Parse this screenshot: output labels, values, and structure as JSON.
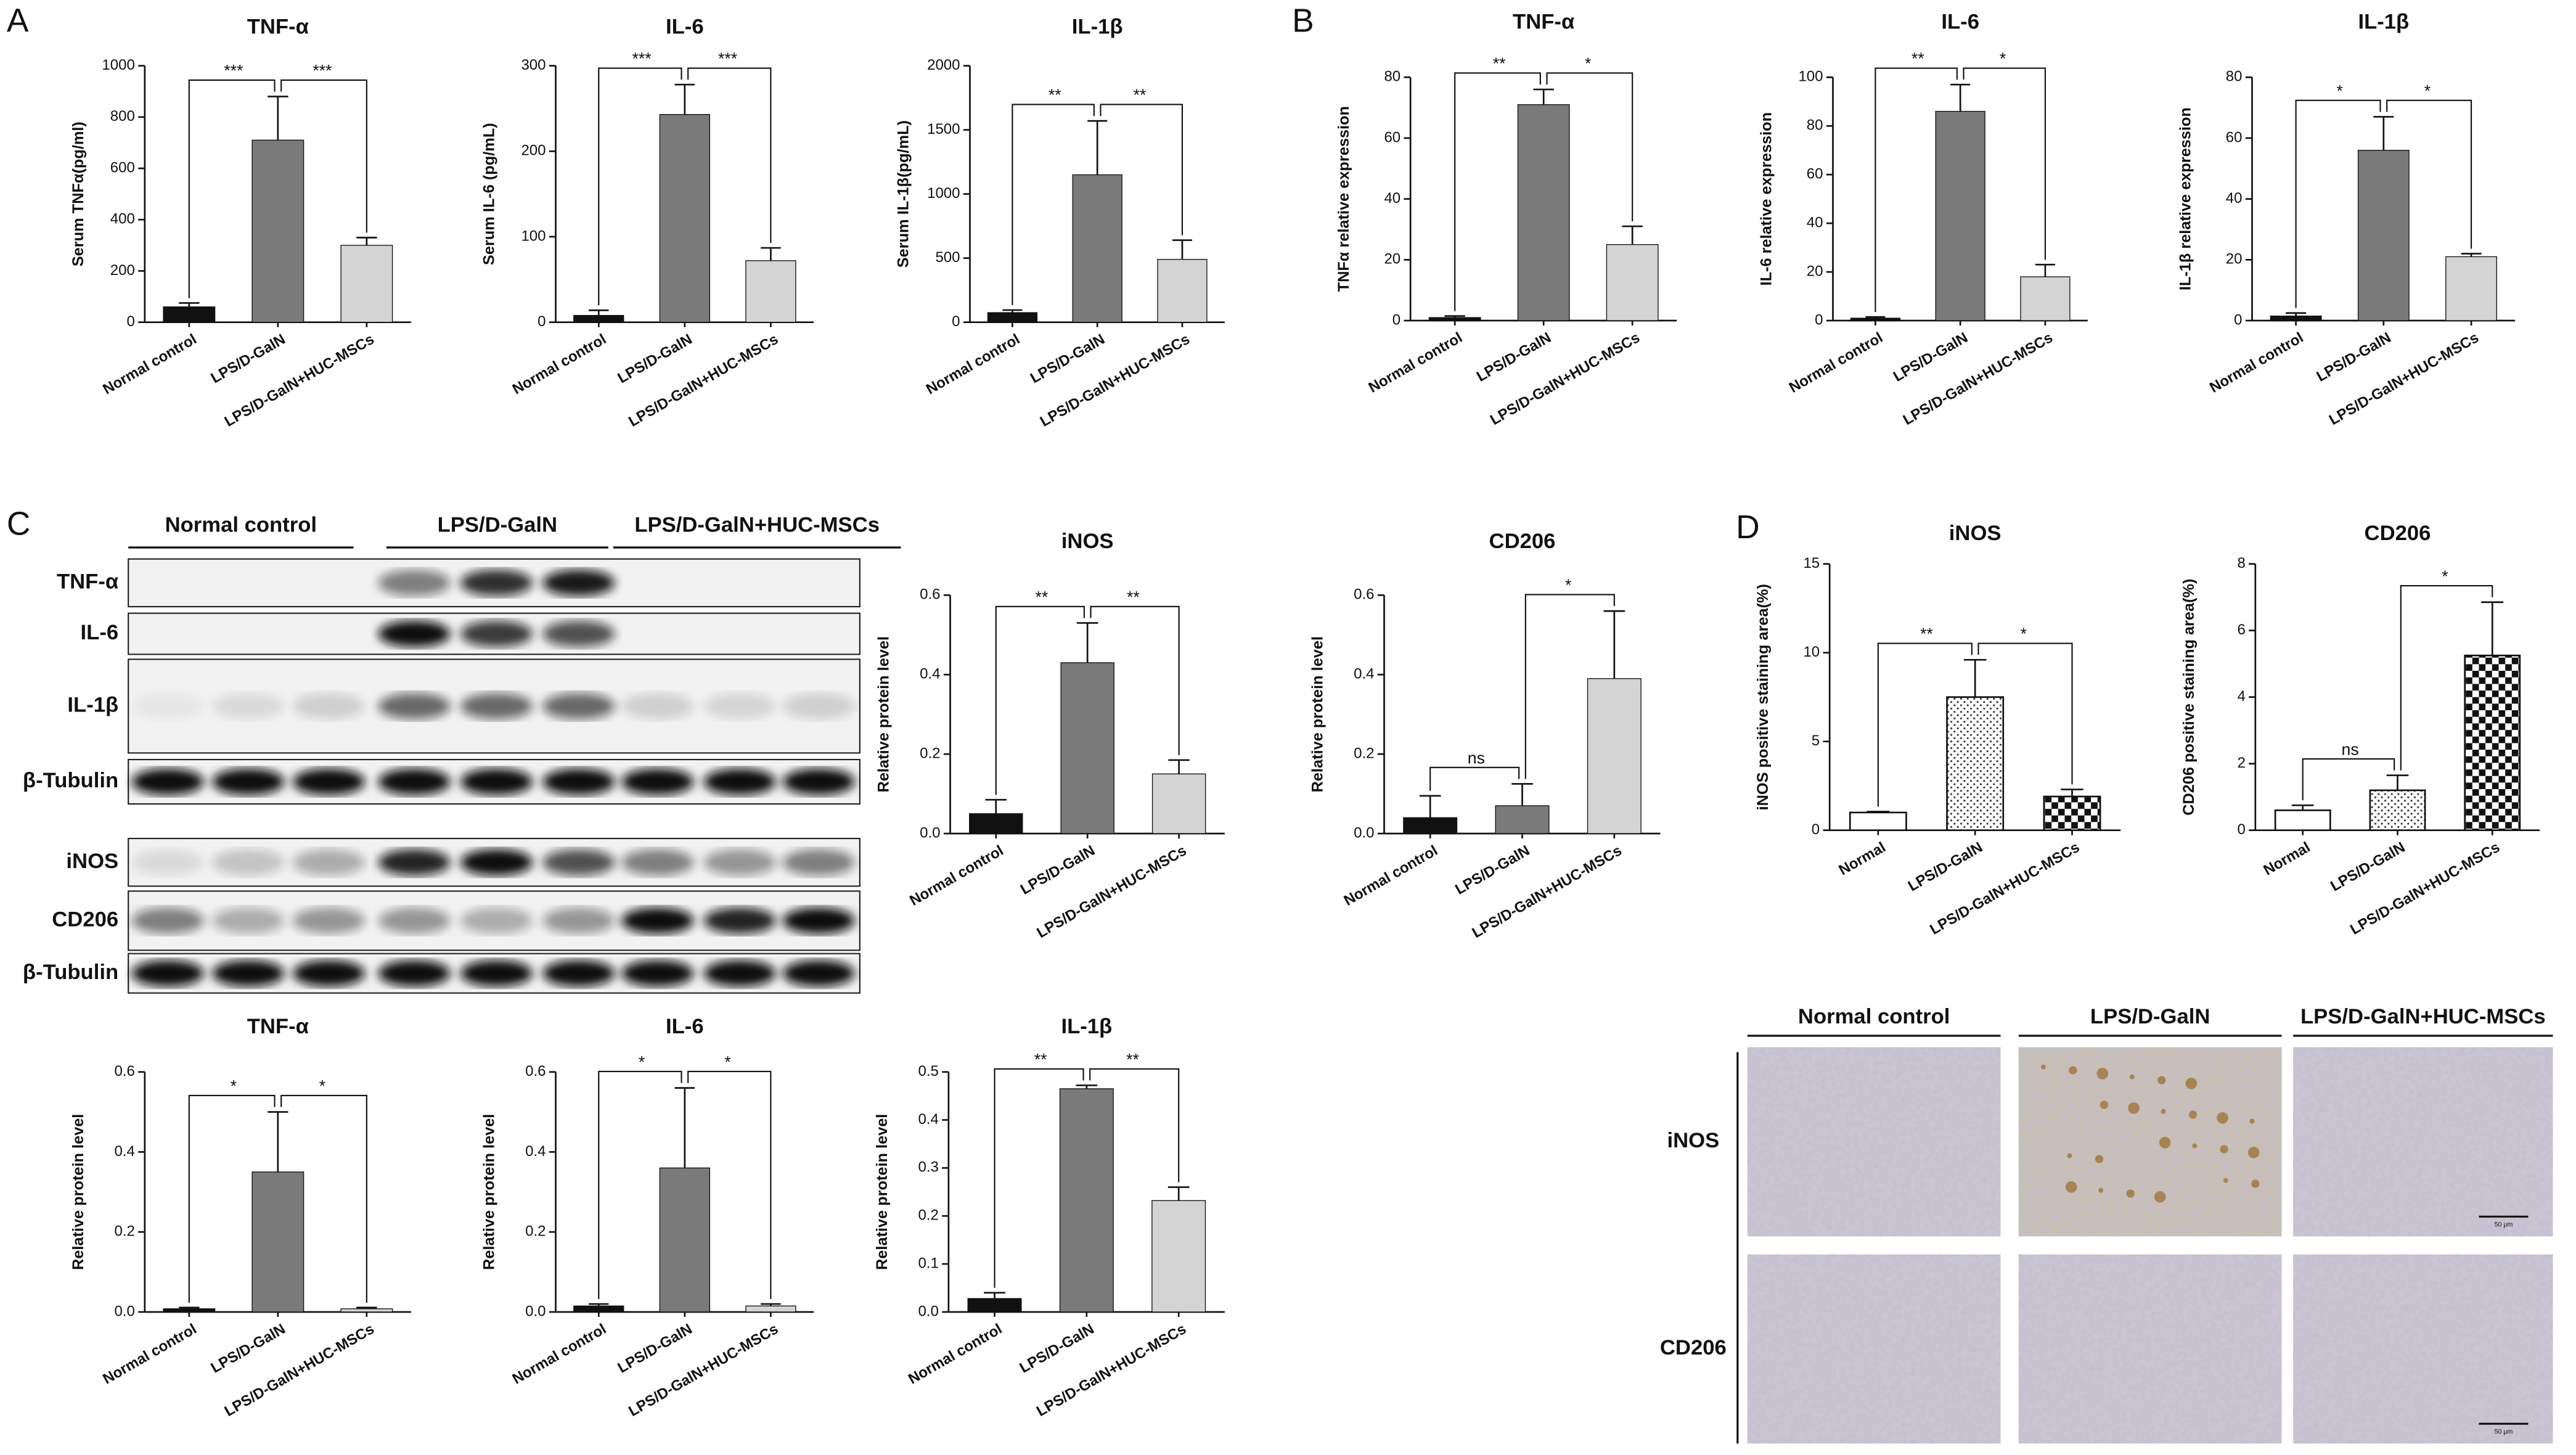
{
  "panel_labels": [
    "A",
    "B",
    "C",
    "D"
  ],
  "western_blot": {
    "groups": [
      "Normal control",
      "LPS/D-GalN",
      "LPS/D-GalN+HUC-MSCs"
    ],
    "rows": [
      "TNF-α",
      "IL-6",
      "IL-1β",
      "β-Tubulin",
      "iNOS",
      "CD206",
      "β-Tubulin"
    ]
  },
  "ihc": {
    "groups": [
      "Normal control",
      "LPS/D-GalN",
      "LPS/D-GalN+HUC-MSCs"
    ],
    "rows": [
      "iNOS",
      "CD206"
    ],
    "scale_bar": "50 μm"
  },
  "chart_data": [
    {
      "type": "bar",
      "title": "TNF-α",
      "y_label": "Serum TNFα(pg/ml)",
      "categories": [
        "Normal control",
        "LPS/D-GalN",
        "LPS/D-GalN+HUC-MSCs"
      ],
      "values": [
        60,
        710,
        300
      ],
      "errors": [
        15,
        170,
        30
      ],
      "colors": [
        "#111111",
        "#7a7a7a",
        "#d4d4d4"
      ],
      "ylim": [
        0,
        1000
      ],
      "yticks": [
        0,
        200,
        400,
        600,
        800,
        1000
      ],
      "annotations": [
        "***",
        "***"
      ]
    },
    {
      "type": "bar",
      "title": "IL-6",
      "y_label": "Serum IL-6 (pg/mL)",
      "categories": [
        "Normal control",
        "LPS/D-GalN",
        "LPS/D-GalN+HUC-MSCs"
      ],
      "values": [
        8,
        243,
        72
      ],
      "errors": [
        6,
        35,
        15
      ],
      "colors": [
        "#111111",
        "#7a7a7a",
        "#d4d4d4"
      ],
      "ylim": [
        0,
        300
      ],
      "yticks": [
        0,
        100,
        200,
        300
      ],
      "annotations": [
        "***",
        "***"
      ]
    },
    {
      "type": "bar",
      "title": "IL-1β",
      "y_label": "Serum IL-1β(pg/mL)",
      "categories": [
        "Normal control",
        "LPS/D-GalN",
        "LPS/D-GalN+HUC-MSCs"
      ],
      "values": [
        75,
        1150,
        490
      ],
      "errors": [
        20,
        420,
        150
      ],
      "colors": [
        "#111111",
        "#7a7a7a",
        "#d4d4d4"
      ],
      "ylim": [
        0,
        2000
      ],
      "yticks": [
        0,
        500,
        1000,
        1500,
        2000
      ],
      "annotations": [
        "**",
        "**"
      ]
    },
    {
      "type": "bar",
      "title": "TNF-α",
      "y_label": "TNFα relative expression",
      "categories": [
        "Normal control",
        "LPS/D-GalN",
        "LPS/D-GalN+HUC-MSCs"
      ],
      "values": [
        1,
        71,
        25
      ],
      "errors": [
        0.5,
        5,
        6
      ],
      "colors": [
        "#111111",
        "#7a7a7a",
        "#d4d4d4"
      ],
      "ylim": [
        0,
        80
      ],
      "yticks": [
        0,
        20,
        40,
        60,
        80
      ],
      "annotations": [
        "**",
        "*"
      ]
    },
    {
      "type": "bar",
      "title": "IL-6",
      "y_label": "IL-6 relative expression",
      "categories": [
        "Normal control",
        "LPS/D-GalN",
        "LPS/D-GalN+HUC-MSCs"
      ],
      "values": [
        1,
        86,
        18
      ],
      "errors": [
        0.5,
        11,
        5
      ],
      "colors": [
        "#111111",
        "#7a7a7a",
        "#d4d4d4"
      ],
      "ylim": [
        0,
        100
      ],
      "yticks": [
        0,
        20,
        40,
        60,
        80,
        100
      ],
      "annotations": [
        "**",
        "*"
      ]
    },
    {
      "type": "bar",
      "title": "IL-1β",
      "y_label": "IL-1β relative expression",
      "categories": [
        "Normal control",
        "LPS/D-GalN",
        "LPS/D-GalN+HUC-MSCs"
      ],
      "values": [
        1.5,
        56,
        21
      ],
      "errors": [
        1,
        11,
        1
      ],
      "colors": [
        "#111111",
        "#7a7a7a",
        "#d4d4d4"
      ],
      "ylim": [
        0,
        80
      ],
      "yticks": [
        0,
        20,
        40,
        60,
        80
      ],
      "annotations": [
        "*",
        "*"
      ]
    },
    {
      "type": "bar",
      "title": "iNOS",
      "y_label": "Relative protein level",
      "categories": [
        "Normal control",
        "LPS/D-GalN",
        "LPS/D-GalN+HUC-MSCs"
      ],
      "values": [
        0.05,
        0.43,
        0.15
      ],
      "errors": [
        0.035,
        0.1,
        0.035
      ],
      "colors": [
        "#111111",
        "#7a7a7a",
        "#d4d4d4"
      ],
      "ylim": [
        0,
        0.6
      ],
      "yticks": [
        {
          "value": 0,
          "label": "0.0"
        },
        0.2,
        0.4,
        0.6
      ],
      "annotations": [
        "**",
        "**"
      ]
    },
    {
      "type": "bar",
      "title": "CD206",
      "y_label": "Relative protein level",
      "categories": [
        "Normal control",
        "LPS/D-GalN",
        "LPS/D-GalN+HUC-MSCs"
      ],
      "values": [
        0.04,
        0.07,
        0.39
      ],
      "errors": [
        0.055,
        0.055,
        0.17
      ],
      "colors": [
        "#111111",
        "#7a7a7a",
        "#d4d4d4"
      ],
      "ylim": [
        0,
        0.6
      ],
      "yticks": [
        {
          "value": 0,
          "label": "0.0"
        },
        0.2,
        0.4,
        0.6
      ],
      "annotations": [
        "ns",
        "*"
      ]
    },
    {
      "type": "bar",
      "title": "TNF-α",
      "y_label": "Relative protein level",
      "categories": [
        "Normal control",
        "LPS/D-GalN",
        "LPS/D-GalN+HUC-MSCs"
      ],
      "values": [
        0.008,
        0.35,
        0.008
      ],
      "errors": [
        0.003,
        0.15,
        0.003
      ],
      "colors": [
        "#111111",
        "#7a7a7a",
        "#d4d4d4"
      ],
      "ylim": [
        0,
        0.6
      ],
      "yticks": [
        {
          "value": 0,
          "label": "0.0"
        },
        0.2,
        0.4,
        0.6
      ],
      "annotations": [
        "*",
        "*"
      ]
    },
    {
      "type": "bar",
      "title": "IL-6",
      "y_label": "Relative protein level",
      "categories": [
        "Normal control",
        "LPS/D-GalN",
        "LPS/D-GalN+HUC-MSCs"
      ],
      "values": [
        0.015,
        0.36,
        0.015
      ],
      "errors": [
        0.005,
        0.2,
        0.005
      ],
      "colors": [
        "#111111",
        "#7a7a7a",
        "#d4d4d4"
      ],
      "ylim": [
        0,
        0.6
      ],
      "yticks": [
        {
          "value": 0,
          "label": "0.0"
        },
        0.2,
        0.4,
        0.6
      ],
      "annotations": [
        "*",
        "*"
      ]
    },
    {
      "type": "bar",
      "title": "IL-1β",
      "y_label": "Relative protein level",
      "categories": [
        "Normal control",
        "LPS/D-GalN",
        "LPS/D-GalN+HUC-MSCs"
      ],
      "values": [
        0.028,
        0.465,
        0.232
      ],
      "errors": [
        0.012,
        0.007,
        0.028
      ],
      "colors": [
        "#111111",
        "#7a7a7a",
        "#d4d4d4"
      ],
      "ylim": [
        0,
        0.5
      ],
      "yticks": [
        {
          "value": 0,
          "label": "0.0"
        },
        0.1,
        0.2,
        0.3,
        0.4,
        0.5
      ],
      "annotations": [
        "**",
        "**"
      ]
    },
    {
      "type": "bar",
      "title": "iNOS",
      "y_label": "iNOS positive staining area(%)",
      "categories": [
        "Normal",
        "LPS/D-GalN",
        "LPS/D-GalN+HUC-MSCs"
      ],
      "values": [
        1,
        7.5,
        1.9
      ],
      "errors": [
        0.05,
        2.1,
        0.4
      ],
      "fills": [
        "white",
        "dots",
        "checker"
      ],
      "ylim": [
        0,
        15
      ],
      "yticks": [
        0,
        5,
        10,
        15
      ],
      "annotations": [
        "**",
        "*"
      ]
    },
    {
      "type": "bar",
      "title": "CD206",
      "y_label": "CD206 positive staining area(%)",
      "categories": [
        "Normal",
        "LPS/D-GalN",
        "LPS/D-GalN+HUC-MSCs"
      ],
      "values": [
        0.6,
        1.2,
        5.25
      ],
      "errors": [
        0.15,
        0.45,
        1.6
      ],
      "fills": [
        "white",
        "dots",
        "checker"
      ],
      "ylim": [
        0,
        8
      ],
      "yticks": [
        0,
        2,
        4,
        6,
        8
      ],
      "annotations": [
        "ns",
        "*"
      ]
    }
  ]
}
